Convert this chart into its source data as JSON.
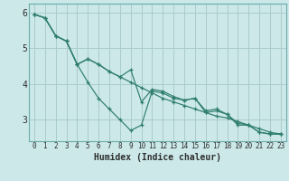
{
  "xlabel": "Humidex (Indice chaleur)",
  "bg_color": "#cce8e8",
  "grid_color": "#aacccc",
  "line_color": "#2e7d6e",
  "series": {
    "s1": [
      5.95,
      5.85,
      5.35,
      5.2,
      4.55,
      4.05,
      3.6,
      3.3,
      3.0,
      2.7,
      2.85,
      3.8,
      3.75,
      3.6,
      3.55,
      3.6,
      3.2,
      3.25,
      3.15,
      2.85,
      2.85,
      2.65,
      2.6,
      2.6
    ],
    "s2": [
      5.95,
      5.85,
      5.35,
      5.2,
      4.55,
      4.7,
      4.55,
      4.35,
      4.2,
      4.05,
      3.9,
      3.75,
      3.6,
      3.5,
      3.4,
      3.3,
      3.2,
      3.1,
      3.05,
      2.95,
      2.85,
      2.75,
      2.65,
      2.6
    ],
    "s3": [
      5.95,
      5.85,
      5.35,
      5.2,
      4.55,
      4.7,
      4.55,
      4.35,
      4.2,
      4.4,
      3.5,
      3.85,
      3.8,
      3.65,
      3.55,
      3.6,
      3.25,
      3.3,
      3.15,
      2.9,
      2.85,
      2.65,
      2.6,
      2.6
    ]
  },
  "x": [
    0,
    1,
    2,
    3,
    4,
    5,
    6,
    7,
    8,
    9,
    10,
    11,
    12,
    13,
    14,
    15,
    16,
    17,
    18,
    19,
    20,
    21,
    22,
    23
  ],
  "ylim": [
    2.4,
    6.25
  ],
  "xlim": [
    -0.5,
    23.5
  ],
  "yticks": [
    3,
    4,
    5,
    6
  ],
  "xticks": [
    0,
    1,
    2,
    3,
    4,
    5,
    6,
    7,
    8,
    9,
    10,
    11,
    12,
    13,
    14,
    15,
    16,
    17,
    18,
    19,
    20,
    21,
    22,
    23
  ],
  "spine_color": "#6aacac",
  "tick_color": "#2e2e2e",
  "xlabel_fontsize": 7.0,
  "ytick_fontsize": 7.0,
  "xtick_fontsize": 5.5
}
